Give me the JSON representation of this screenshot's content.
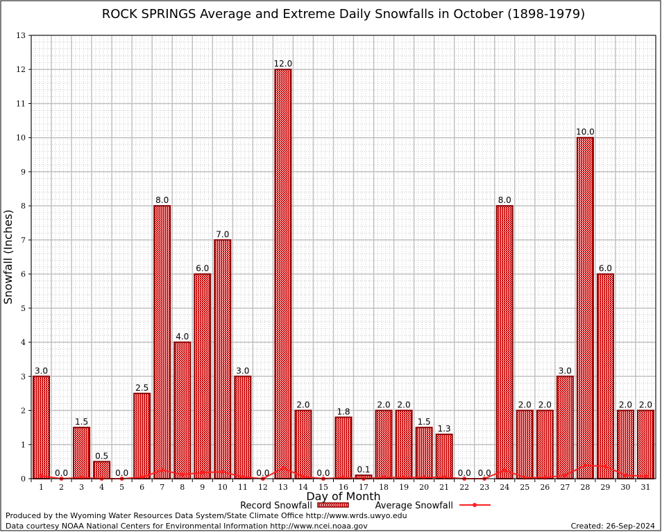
{
  "chart_data": {
    "type": "bar",
    "title": "ROCK SPRINGS Average and Extreme Daily Snowfalls in October (1898-1979)",
    "xlabel": "Day of Month",
    "ylabel": "Snowfall (Inches)",
    "ylim": [
      0,
      13
    ],
    "yticks": [
      "0",
      "1",
      "2",
      "3",
      "4",
      "5",
      "6",
      "7",
      "8",
      "9",
      "10",
      "11",
      "12",
      "13"
    ],
    "categories": [
      "1",
      "2",
      "3",
      "4",
      "5",
      "6",
      "7",
      "8",
      "9",
      "10",
      "11",
      "12",
      "13",
      "14",
      "15",
      "16",
      "17",
      "18",
      "19",
      "20",
      "21",
      "22",
      "23",
      "24",
      "25",
      "26",
      "27",
      "28",
      "29",
      "30",
      "31"
    ],
    "series": [
      {
        "name": "Record Snowfall",
        "type": "bar",
        "color": "#cc0000",
        "values": [
          3.0,
          0.0,
          1.5,
          0.5,
          0.0,
          2.5,
          8.0,
          4.0,
          6.0,
          7.0,
          3.0,
          0.0,
          12.0,
          2.0,
          0.0,
          1.8,
          0.1,
          2.0,
          2.0,
          1.5,
          1.3,
          0.0,
          0.0,
          8.0,
          2.0,
          2.0,
          3.0,
          10.0,
          6.0,
          2.0,
          2.0
        ],
        "labels": [
          "3.0",
          "0.0",
          "1.5",
          "0.5",
          "0.0",
          "2.5",
          "8.0",
          "4.0",
          "6.0",
          "7.0",
          "3.0",
          "0.0",
          "12.0",
          "2.0",
          "0.0",
          "1.8",
          "0.1",
          "2.0",
          "2.0",
          "1.5",
          "1.3",
          "0.0",
          "0.0",
          "8.0",
          "2.0",
          "2.0",
          "3.0",
          "10.0",
          "6.0",
          "2.0",
          "2.0"
        ]
      },
      {
        "name": "Average Snowfall",
        "type": "line",
        "color": "#ff2020",
        "values": [
          0.08,
          0,
          0.03,
          0,
          0,
          0.04,
          0.25,
          0.12,
          0.18,
          0.2,
          0.05,
          0,
          0.31,
          0.06,
          0,
          0.03,
          0,
          0.04,
          0.03,
          0.04,
          0.04,
          0,
          0,
          0.25,
          0.03,
          0.03,
          0.1,
          0.39,
          0.36,
          0.1,
          0.07
        ]
      }
    ],
    "legend": "bottom-center",
    "grid": true
  },
  "footer": {
    "line1": "Produced by the Wyoming Water Resources Data System/State Climate Office http://www.wrds.uwyo.edu",
    "line2": "Data courtesy NOAA National Centers for Environmental Information http://www.ncei.noaa.gov",
    "created": "Created:  26-Sep-2024"
  }
}
